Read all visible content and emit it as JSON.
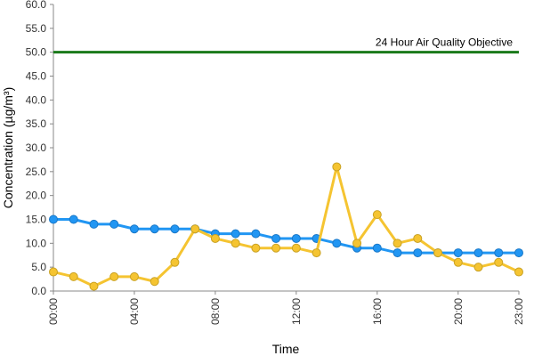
{
  "chart_data": {
    "type": "line",
    "title": "",
    "xlabel": "Time",
    "ylabel": "Concentration (µg/m³)",
    "ylim": [
      0,
      60
    ],
    "y_ticks": [
      "0.0",
      "5.0",
      "10.0",
      "15.0",
      "20.0",
      "25.0",
      "30.0",
      "35.0",
      "40.0",
      "45.0",
      "50.0",
      "55.0",
      "60.0"
    ],
    "x": [
      "00:00",
      "01:00",
      "02:00",
      "03:00",
      "04:00",
      "05:00",
      "06:00",
      "07:00",
      "08:00",
      "09:00",
      "10:00",
      "11:00",
      "12:00",
      "13:00",
      "14:00",
      "15:00",
      "16:00",
      "17:00",
      "18:00",
      "19:00",
      "20:00",
      "21:00",
      "22:00",
      "23:00"
    ],
    "x_tick_labels": [
      "00:00",
      "04:00",
      "08:00",
      "12:00",
      "16:00",
      "20:00",
      "23:00"
    ],
    "series": [
      {
        "color": "#2196f3",
        "values": [
          15,
          15,
          14,
          14,
          13,
          13,
          13,
          13,
          12,
          12,
          12,
          11,
          11,
          11,
          10,
          9,
          9,
          8,
          8,
          8,
          8,
          8,
          8,
          8
        ]
      },
      {
        "color": "#f5c431",
        "values": [
          4,
          3,
          1,
          3,
          3,
          2,
          6,
          13,
          11,
          10,
          9,
          9,
          9,
          8,
          26,
          10,
          16,
          10,
          11,
          8,
          6,
          5,
          6,
          4
        ]
      }
    ],
    "reference_line": {
      "label": "24 Hour Air Quality Objective",
      "value": 50,
      "color": "#1a7a1a"
    },
    "grid": false,
    "legend": "none"
  }
}
